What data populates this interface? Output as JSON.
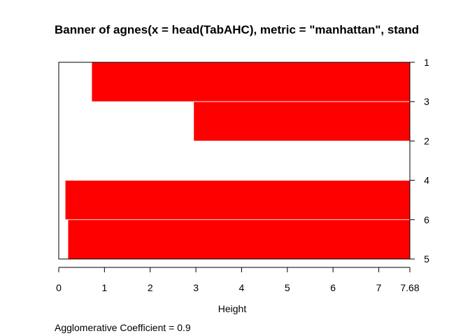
{
  "chart_data": {
    "type": "bar",
    "orientation": "horizontal",
    "title": "Banner of  agnes(x = head(TabAHC), metric = \"manhattan\", stand",
    "xlabel": "Height",
    "xlim": [
      0,
      7.68
    ],
    "x_ticks": [
      {
        "value": 0,
        "label": "0"
      },
      {
        "value": 1,
        "label": "1"
      },
      {
        "value": 2,
        "label": "2"
      },
      {
        "value": 3,
        "label": "3"
      },
      {
        "value": 4,
        "label": "4"
      },
      {
        "value": 5,
        "label": "5"
      },
      {
        "value": 6,
        "label": "6"
      },
      {
        "value": 7,
        "label": "7"
      },
      {
        "value": 7.68,
        "label": "7.68"
      }
    ],
    "order_labels": [
      "1",
      "3",
      "2",
      "4",
      "6",
      "5"
    ],
    "merge_heights": [
      0.72,
      2.95,
      7.68,
      0.14,
      0.2
    ],
    "bar_color": "#ff0000",
    "footer": "Agglomerative Coefficient =  0.9"
  }
}
